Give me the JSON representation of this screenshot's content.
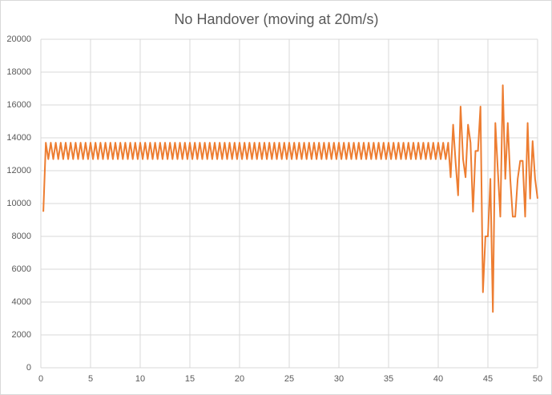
{
  "chart_data": {
    "type": "line",
    "title": "No Handover (moving at 20m/s)",
    "color": "#ed7d31",
    "grid": true,
    "xlim": [
      0,
      50
    ],
    "xticks": [
      0,
      5,
      10,
      15,
      20,
      25,
      30,
      35,
      40,
      45,
      50
    ],
    "ylim": [
      0,
      20000
    ],
    "yticks": [
      0,
      2000,
      4000,
      6000,
      8000,
      10000,
      12000,
      14000,
      16000,
      18000,
      20000
    ],
    "x": [
      0.25,
      0.5,
      0.75,
      1,
      1.25,
      1.5,
      1.75,
      2,
      2.25,
      2.5,
      2.75,
      3,
      3.25,
      3.5,
      3.75,
      4,
      4.25,
      4.5,
      4.75,
      5,
      5.25,
      5.5,
      5.75,
      6,
      6.25,
      6.5,
      6.75,
      7,
      7.25,
      7.5,
      7.75,
      8,
      8.25,
      8.5,
      8.75,
      9,
      9.25,
      9.5,
      9.75,
      10,
      10.25,
      10.5,
      10.75,
      11,
      11.25,
      11.5,
      11.75,
      12,
      12.25,
      12.5,
      12.75,
      13,
      13.25,
      13.5,
      13.75,
      14,
      14.25,
      14.5,
      14.75,
      15,
      15.25,
      15.5,
      15.75,
      16,
      16.25,
      16.5,
      16.75,
      17,
      17.25,
      17.5,
      17.75,
      18,
      18.25,
      18.5,
      18.75,
      19,
      19.25,
      19.5,
      19.75,
      20,
      20.25,
      20.5,
      20.75,
      21,
      21.25,
      21.5,
      21.75,
      22,
      22.25,
      22.5,
      22.75,
      23,
      23.25,
      23.5,
      23.75,
      24,
      24.25,
      24.5,
      24.75,
      25,
      25.25,
      25.5,
      25.75,
      26,
      26.25,
      26.5,
      26.75,
      27,
      27.25,
      27.5,
      27.75,
      28,
      28.25,
      28.5,
      28.75,
      29,
      29.25,
      29.5,
      29.75,
      30,
      30.25,
      30.5,
      30.75,
      31,
      31.25,
      31.5,
      31.75,
      32,
      32.25,
      32.5,
      32.75,
      33,
      33.25,
      33.5,
      33.75,
      34,
      34.25,
      34.5,
      34.75,
      35,
      35.25,
      35.5,
      35.75,
      36,
      36.25,
      36.5,
      36.75,
      37,
      37.25,
      37.5,
      37.75,
      38,
      38.25,
      38.5,
      38.75,
      39,
      39.25,
      39.5,
      39.75,
      40,
      40.25,
      40.5,
      40.75,
      41,
      41.25,
      41.5,
      41.75,
      42,
      42.25,
      42.5,
      42.75,
      43,
      43.25,
      43.5,
      43.75,
      44,
      44.25,
      44.5,
      44.75,
      45,
      45.25,
      45.5,
      45.75,
      46,
      46.25,
      46.5,
      46.75,
      47,
      47.25,
      47.5,
      47.75,
      48,
      48.25,
      48.5,
      48.75,
      49,
      49.25,
      49.5,
      49.75,
      50
    ],
    "values": [
      9500,
      13700,
      12700,
      13700,
      12700,
      13700,
      12700,
      13700,
      12700,
      13700,
      12700,
      13700,
      12700,
      13700,
      12700,
      13700,
      12700,
      13700,
      12700,
      13700,
      12700,
      13700,
      12700,
      13700,
      12700,
      13700,
      12700,
      13700,
      12700,
      13700,
      12700,
      13700,
      12700,
      13700,
      12700,
      13700,
      12700,
      13700,
      12700,
      13700,
      12700,
      13700,
      12700,
      13700,
      12700,
      13700,
      12700,
      13700,
      12700,
      13700,
      12700,
      13700,
      12700,
      13700,
      12700,
      13700,
      12700,
      13700,
      12700,
      13700,
      12700,
      13700,
      12700,
      13700,
      12700,
      13700,
      12700,
      13700,
      12700,
      13700,
      12700,
      13700,
      12700,
      13700,
      12700,
      13700,
      12700,
      13700,
      12700,
      13700,
      12700,
      13700,
      12700,
      13700,
      12700,
      13700,
      12700,
      13700,
      12700,
      13700,
      12700,
      13700,
      12700,
      13700,
      12700,
      13700,
      12700,
      13700,
      12700,
      13700,
      12700,
      13700,
      12700,
      13700,
      12700,
      13700,
      12700,
      13700,
      12700,
      13700,
      12700,
      13700,
      12700,
      13700,
      12700,
      13700,
      12700,
      13700,
      12700,
      13700,
      12700,
      13700,
      12700,
      13700,
      12700,
      13700,
      12700,
      13700,
      12700,
      13700,
      12700,
      13700,
      12700,
      13700,
      12700,
      13700,
      12700,
      13700,
      12700,
      13700,
      12700,
      13700,
      12700,
      13700,
      12700,
      13700,
      12700,
      13700,
      12700,
      13700,
      12700,
      13700,
      12700,
      13700,
      12700,
      13700,
      12700,
      13700,
      12700,
      13700,
      12700,
      13700,
      12700,
      13700,
      11600,
      14800,
      12500,
      10500,
      15900,
      12700,
      11600,
      14800,
      13700,
      9500,
      13200,
      13200,
      15900,
      4600,
      8000,
      8000,
      11500,
      3400,
      14900,
      12000,
      9200,
      17200,
      11500,
      14900,
      11500,
      9200,
      9200,
      11500,
      12600,
      12600,
      9200,
      14900,
      10300,
      13800,
      11500,
      10300
    ]
  }
}
